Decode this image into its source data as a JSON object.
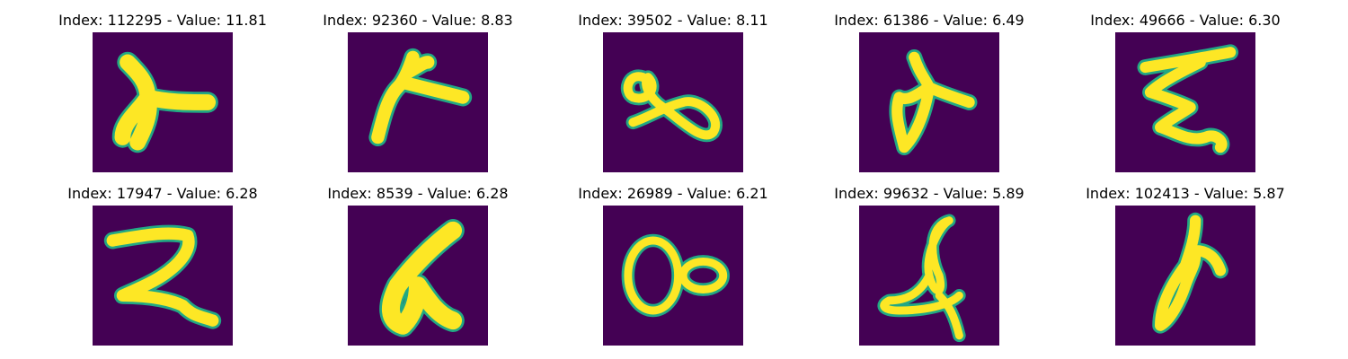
{
  "grid": {
    "colors": {
      "background": "#440154",
      "edge": "#22a884",
      "stroke": "#fde725"
    },
    "items": [
      {
        "title": "Index: 112295 - Value: 11.81"
      },
      {
        "title": "Index: 92360 - Value: 8.83"
      },
      {
        "title": "Index: 39502 - Value: 8.11"
      },
      {
        "title": "Index: 61386 - Value: 6.49"
      },
      {
        "title": "Index: 49666 - Value: 6.30"
      },
      {
        "title": "Index: 17947 - Value: 6.28"
      },
      {
        "title": "Index: 8539 - Value: 6.28"
      },
      {
        "title": "Index: 26989 - Value: 6.21"
      },
      {
        "title": "Index: 99632 - Value: 5.89"
      },
      {
        "title": "Index: 102413 - Value: 5.87"
      }
    ]
  }
}
